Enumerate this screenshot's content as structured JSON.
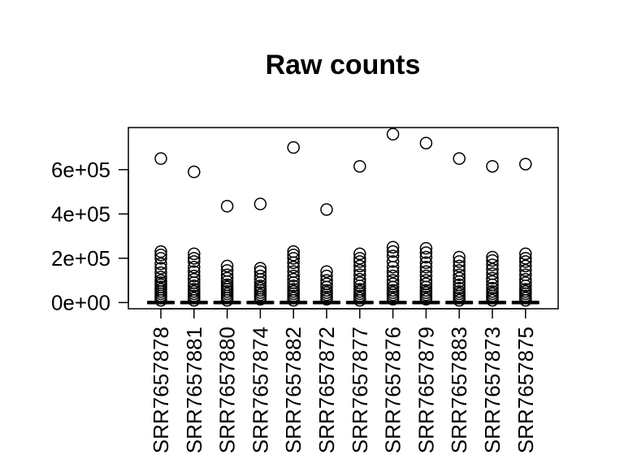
{
  "chart_data": {
    "type": "boxplot",
    "title": "Raw counts",
    "xlabel": "",
    "ylabel": "",
    "ylim": [
      -28000,
      790000
    ],
    "yticks": [
      0,
      200000,
      400000,
      600000
    ],
    "ytick_labels": [
      "0e+00",
      "2e+05",
      "4e+05",
      "6e+05"
    ],
    "categories": [
      "SRR7657878",
      "SRR7657881",
      "SRR7657880",
      "SRR7657874",
      "SRR7657882",
      "SRR7657872",
      "SRR7657877",
      "SRR7657876",
      "SRR7657879",
      "SRR7657883",
      "SRR7657873",
      "SRR7657875"
    ],
    "series": [
      {
        "median": 0,
        "outliers": [
          650000,
          230000,
          215000,
          200000,
          175000,
          155000,
          135000,
          115000,
          100000,
          90000,
          80000,
          70000,
          60000,
          50000,
          40000,
          30000,
          20000,
          10000
        ]
      },
      {
        "median": 0,
        "outliers": [
          590000,
          220000,
          200000,
          185000,
          160000,
          140000,
          120000,
          105000,
          90000,
          75000,
          60000,
          50000,
          40000,
          30000,
          20000,
          10000
        ]
      },
      {
        "median": 0,
        "outliers": [
          435000,
          165000,
          145000,
          125000,
          110000,
          95000,
          80000,
          70000,
          60000,
          50000,
          40000,
          30000,
          20000,
          10000
        ]
      },
      {
        "median": 0,
        "outliers": [
          445000,
          155000,
          140000,
          120000,
          105000,
          90000,
          75000,
          65000,
          55000,
          45000,
          35000,
          25000,
          15000
        ]
      },
      {
        "median": 0,
        "outliers": [
          700000,
          230000,
          215000,
          200000,
          180000,
          160000,
          140000,
          120000,
          105000,
          90000,
          75000,
          60000,
          50000,
          40000,
          30000,
          20000,
          10000
        ]
      },
      {
        "median": 0,
        "outliers": [
          420000,
          140000,
          120000,
          100000,
          85000,
          70000,
          55000,
          45000,
          35000,
          25000,
          15000
        ]
      },
      {
        "median": 0,
        "outliers": [
          615000,
          220000,
          200000,
          185000,
          165000,
          145000,
          125000,
          105000,
          90000,
          75000,
          60000,
          50000,
          40000,
          30000,
          20000,
          10000
        ]
      },
      {
        "median": 0,
        "outliers": [
          760000,
          250000,
          230000,
          210000,
          185000,
          160000,
          140000,
          120000,
          100000,
          85000,
          70000,
          55000,
          45000,
          35000,
          25000,
          15000
        ]
      },
      {
        "median": 0,
        "outliers": [
          720000,
          245000,
          225000,
          205000,
          180000,
          160000,
          140000,
          120000,
          100000,
          85000,
          70000,
          55000,
          45000,
          35000,
          25000,
          15000
        ]
      },
      {
        "median": 0,
        "outliers": [
          650000,
          205000,
          185000,
          165000,
          145000,
          125000,
          110000,
          95000,
          80000,
          65000,
          50000,
          40000,
          30000,
          20000,
          10000
        ]
      },
      {
        "median": 0,
        "outliers": [
          615000,
          205000,
          190000,
          170000,
          150000,
          130000,
          110000,
          95000,
          80000,
          65000,
          50000,
          40000,
          30000,
          20000,
          10000
        ]
      },
      {
        "median": 0,
        "outliers": [
          625000,
          220000,
          200000,
          185000,
          165000,
          145000,
          125000,
          105000,
          90000,
          75000,
          60000,
          50000,
          40000,
          30000,
          20000,
          10000
        ]
      }
    ],
    "grid": false,
    "legend": "none"
  }
}
